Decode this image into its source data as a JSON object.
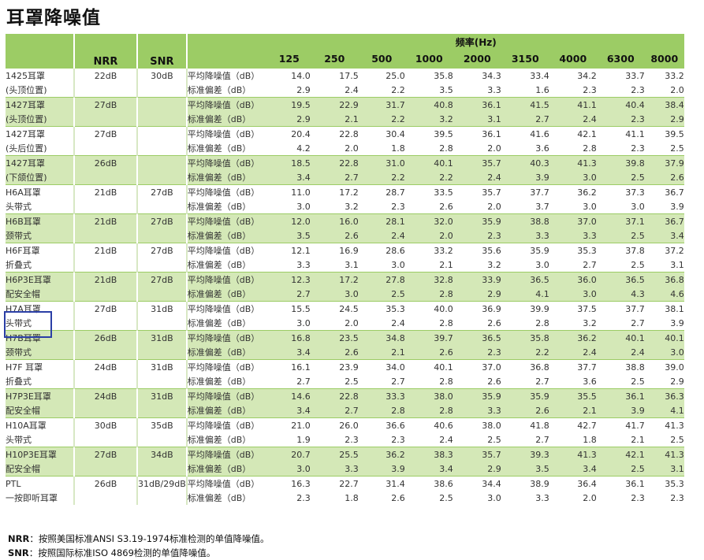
{
  "title": "耳罩降噪值",
  "headers": {
    "nrr": "NRR",
    "snr": "SNR",
    "freq_title": "频率(Hz)",
    "frequencies": [
      "125",
      "250",
      "500",
      "1000",
      "2000",
      "3150",
      "4000",
      "6300",
      "8000"
    ]
  },
  "rows": [
    {
      "name1": "1425耳罩",
      "name2": "(头顶位置)",
      "nrr": "22dB",
      "snr": "30dB",
      "lbl1": "平均降噪值（dB）",
      "lbl2": "标准偏差（dB）",
      "mean": [
        "14.0",
        "17.5",
        "25.0",
        "35.8",
        "34.3",
        "33.4",
        "34.2",
        "33.7",
        "33.2"
      ],
      "sd": [
        "2.9",
        "2.4",
        "2.2",
        "3.5",
        "3.3",
        "1.6",
        "2.3",
        "2.3",
        "2.0"
      ]
    },
    {
      "name1": "1427耳罩",
      "name2": "(头顶位置)",
      "nrr": "27dB",
      "snr": "",
      "lbl1": "平均降噪值（dB）",
      "lbl2": "标准偏差（dB）",
      "mean": [
        "19.5",
        "22.9",
        "31.7",
        "40.8",
        "36.1",
        "41.5",
        "41.1",
        "40.4",
        "38.4"
      ],
      "sd": [
        "2.9",
        "2.1",
        "2.2",
        "3.2",
        "3.1",
        "2.7",
        "2.4",
        "2.3",
        "2.9"
      ]
    },
    {
      "name1": "1427耳罩",
      "name2": "(头后位置)",
      "nrr": "27dB",
      "snr": "",
      "lbl1": "平均降噪值（dB）",
      "lbl2": "标准偏差（dB）",
      "mean": [
        "20.4",
        "22.8",
        "30.4",
        "39.5",
        "36.1",
        "41.6",
        "42.1",
        "41.1",
        "39.5"
      ],
      "sd": [
        "4.2",
        "2.0",
        "1.8",
        "2.8",
        "2.0",
        "3.6",
        "2.8",
        "2.3",
        "2.5"
      ]
    },
    {
      "name1": "1427耳罩",
      "name2": "(下颌位置)",
      "nrr": "26dB",
      "snr": "",
      "lbl1": "平均降噪值（dB）",
      "lbl2": "标准偏差（dB）",
      "mean": [
        "18.5",
        "22.8",
        "31.0",
        "40.1",
        "35.7",
        "40.3",
        "41.3",
        "39.8",
        "37.9"
      ],
      "sd": [
        "3.4",
        "2.7",
        "2.2",
        "2.2",
        "2.4",
        "3.9",
        "3.0",
        "2.5",
        "2.6"
      ]
    },
    {
      "name1": "H6A耳罩",
      "name2": "头带式",
      "nrr": "21dB",
      "snr": "27dB",
      "lbl1": "平均降噪值（dB）",
      "lbl2": "标准偏差（dB）",
      "mean": [
        "11.0",
        "17.2",
        "28.7",
        "33.5",
        "35.7",
        "37.7",
        "36.2",
        "37.3",
        "36.7"
      ],
      "sd": [
        "3.0",
        "3.2",
        "2.3",
        "2.6",
        "2.0",
        "3.7",
        "3.0",
        "3.0",
        "3.9"
      ]
    },
    {
      "name1": "H6B耳罩",
      "name2": "颈带式",
      "nrr": "21dB",
      "snr": "27dB",
      "lbl1": "平均降噪值（dB）",
      "lbl2": "标准偏差（dB）",
      "mean": [
        "12.0",
        "16.0",
        "28.1",
        "32.0",
        "35.9",
        "38.8",
        "37.0",
        "37.1",
        "36.7"
      ],
      "sd": [
        "3.5",
        "2.6",
        "2.4",
        "2.0",
        "2.3",
        "3.3",
        "3.3",
        "2.5",
        "3.4"
      ]
    },
    {
      "name1": "H6F耳罩",
      "name2": "折叠式",
      "nrr": "21dB",
      "snr": "27dB",
      "lbl1": "平均降噪值（dB）",
      "lbl2": "标准偏差（dB）",
      "mean": [
        "12.1",
        "16.9",
        "28.6",
        "33.2",
        "35.6",
        "35.9",
        "35.3",
        "37.8",
        "37.2"
      ],
      "sd": [
        "3.3",
        "3.1",
        "3.0",
        "2.1",
        "3.2",
        "3.0",
        "2.7",
        "2.5",
        "3.1"
      ]
    },
    {
      "name1": "H6P3E耳罩",
      "name2": "配安全帽",
      "nrr": "21dB",
      "snr": "27dB",
      "lbl1": "平均降噪值（dB）",
      "lbl2": "标准偏差（dB）",
      "mean": [
        "12.3",
        "17.2",
        "27.8",
        "32.8",
        "33.9",
        "36.5",
        "36.0",
        "36.5",
        "36.8"
      ],
      "sd": [
        "2.7",
        "3.0",
        "2.5",
        "2.8",
        "2.9",
        "4.1",
        "3.0",
        "4.3",
        "4.6"
      ]
    },
    {
      "name1": "H7A耳罩",
      "name2": "头带式",
      "nrr": "27dB",
      "snr": "31dB",
      "lbl1": "平均降噪值（dB）",
      "lbl2": "标准偏差（dB）",
      "mean": [
        "15.5",
        "24.5",
        "35.3",
        "40.0",
        "36.9",
        "39.9",
        "37.5",
        "37.7",
        "38.1"
      ],
      "sd": [
        "3.0",
        "2.0",
        "2.4",
        "2.8",
        "2.6",
        "2.8",
        "3.2",
        "2.7",
        "3.9"
      ]
    },
    {
      "name1": "H7B耳罩",
      "name2": "颈带式",
      "nrr": "26dB",
      "snr": "31dB",
      "lbl1": "平均降噪值（dB）",
      "lbl2": "标准偏差（dB）",
      "mean": [
        "16.8",
        "23.5",
        "34.8",
        "39.7",
        "36.5",
        "35.8",
        "36.2",
        "40.1",
        "40.1"
      ],
      "sd": [
        "3.4",
        "2.6",
        "2.1",
        "2.6",
        "2.3",
        "2.2",
        "2.4",
        "2.4",
        "3.0"
      ]
    },
    {
      "name1": "H7F 耳罩",
      "name2": "折叠式",
      "nrr": "24dB",
      "snr": "31dB",
      "lbl1": "平均降噪值（dB）",
      "lbl2": "标准偏差（dB）",
      "mean": [
        "16.1",
        "23.9",
        "34.0",
        "40.1",
        "37.0",
        "36.8",
        "37.7",
        "38.8",
        "39.0"
      ],
      "sd": [
        "2.7",
        "2.5",
        "2.7",
        "2.8",
        "2.6",
        "2.7",
        "3.6",
        "2.5",
        "2.9"
      ]
    },
    {
      "name1": "H7P3E耳罩",
      "name2": "配安全帽",
      "nrr": "24dB",
      "snr": "31dB",
      "lbl1": "平均降噪值（dB）",
      "lbl2": "标准偏差（dB）",
      "mean": [
        "14.6",
        "22.8",
        "33.3",
        "38.0",
        "35.9",
        "35.9",
        "35.5",
        "36.1",
        "36.3"
      ],
      "sd": [
        "3.4",
        "2.7",
        "2.8",
        "2.8",
        "3.3",
        "2.6",
        "2.1",
        "3.9",
        "4.1"
      ]
    },
    {
      "name1": "H10A耳罩",
      "name2": "头带式",
      "nrr": "30dB",
      "snr": "35dB",
      "lbl1": "平均降噪值（dB）",
      "lbl2": "标准偏差（dB）",
      "mean": [
        "21.0",
        "26.0",
        "36.6",
        "40.6",
        "38.0",
        "41.8",
        "42.7",
        "41.7",
        "41.3"
      ],
      "sd": [
        "1.9",
        "2.3",
        "2.3",
        "2.4",
        "2.5",
        "2.7",
        "1.8",
        "2.1",
        "2.5"
      ]
    },
    {
      "name1": "H10P3E耳罩",
      "name2": "配安全帽",
      "nrr": "27dB",
      "snr": "34dB",
      "lbl1": "平均降噪值（dB）",
      "lbl2": "标准偏差（dB）",
      "mean": [
        "20.7",
        "25.5",
        "36.2",
        "38.3",
        "35.7",
        "39.3",
        "41.3",
        "42.1",
        "41.3"
      ],
      "sd": [
        "3.0",
        "3.3",
        "3.9",
        "3.4",
        "2.9",
        "3.5",
        "3.4",
        "2.5",
        "3.1"
      ]
    },
    {
      "name1": "PTL",
      "name2": "一按即听耳罩",
      "nrr": "26dB",
      "snr": "31dB/29dB",
      "lbl1": "平均降噪值（dB）",
      "lbl2": "标准偏差（dB）",
      "mean": [
        "16.3",
        "22.7",
        "31.4",
        "38.6",
        "34.4",
        "38.9",
        "36.4",
        "36.1",
        "35.3"
      ],
      "sd": [
        "2.3",
        "1.8",
        "2.6",
        "2.5",
        "3.0",
        "3.3",
        "2.0",
        "2.3",
        "2.3"
      ]
    }
  ],
  "notes": [
    {
      "key": "NRR",
      "text": "：按照美国标准ANSI S3.19-1974标准检测的单值降噪值。"
    },
    {
      "key": "SNR",
      "text": "：按照国际标准ISO 4869检测的单值降噪值。"
    }
  ],
  "colors": {
    "header_green": "#9ccc65",
    "row_green": "#d4e8b7",
    "highlight": "#2b3fa6"
  }
}
